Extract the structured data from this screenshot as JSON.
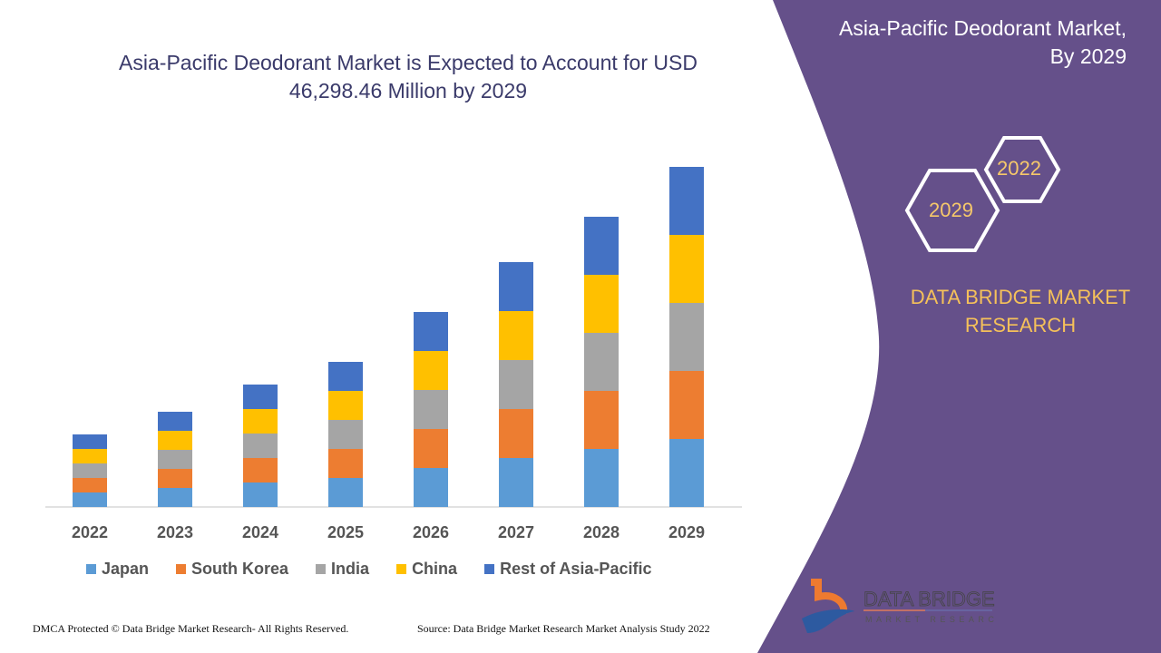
{
  "title": "Asia-Pacific Deodorant Market is Expected to Account for USD 46,298.46 Million by 2029",
  "side_panel": {
    "heading": "Asia-Pacific Deodorant Market, By 2029",
    "hex_years": [
      "2022",
      "2029"
    ],
    "brand": "DATA BRIDGE MARKET RESEARCH",
    "logo_text": "DATA BRIDGE",
    "logo_subtext": "MARKET RESEARCH",
    "panel_color": "#65508a"
  },
  "footer": {
    "left": "DMCA Protected © Data Bridge Market Research- All Rights Reserved.",
    "right": "Source: Data Bridge Market Research Market Analysis Study 2022"
  },
  "chart_data": {
    "type": "bar",
    "stacked": true,
    "title": "Asia-Pacific Deodorant Market is Expected to Account for USD 46,298.46 Million by 2029",
    "xlabel": "",
    "ylabel": "",
    "y_axis_shown": false,
    "grid": false,
    "legend_position": "bottom",
    "categories": [
      "2022",
      "2023",
      "2024",
      "2025",
      "2026",
      "2027",
      "2028",
      "2029"
    ],
    "series": [
      {
        "name": "Japan",
        "color": "#5b9bd5",
        "values": [
          16,
          21,
          27,
          32,
          43,
          54,
          64,
          75
        ]
      },
      {
        "name": "South Korea",
        "color": "#ed7d31",
        "values": [
          16,
          21,
          27,
          32,
          43,
          54,
          64,
          75
        ]
      },
      {
        "name": "India",
        "color": "#a5a5a5",
        "values": [
          16,
          21,
          27,
          32,
          43,
          54,
          64,
          75
        ]
      },
      {
        "name": "China",
        "color": "#ffc000",
        "values": [
          16,
          21,
          27,
          32,
          43,
          54,
          64,
          75
        ]
      },
      {
        "name": "Rest of Asia-Pacific",
        "color": "#4472c4",
        "values": [
          16,
          21,
          27,
          32,
          43,
          54,
          64,
          75
        ]
      }
    ]
  }
}
